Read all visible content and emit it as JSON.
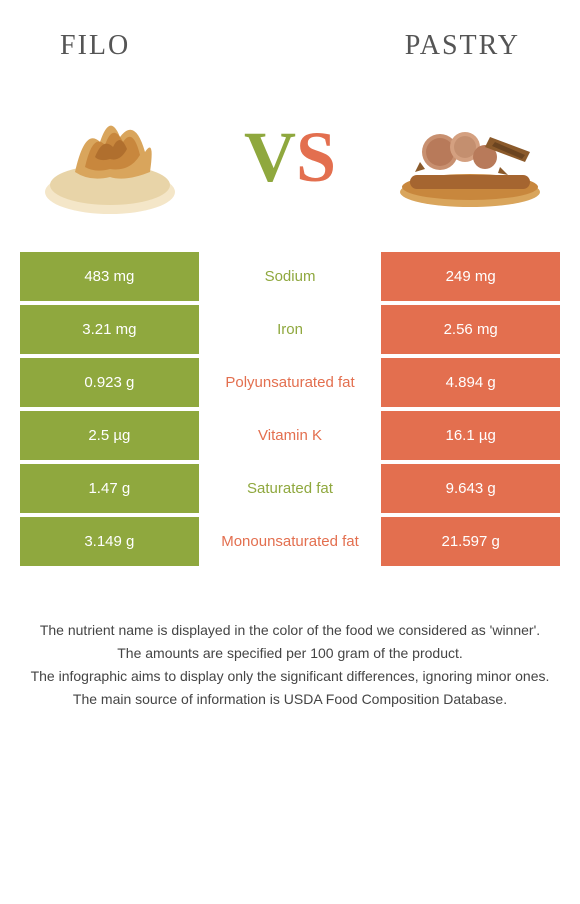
{
  "header": {
    "left_title": "Filo",
    "right_title": "Pastry"
  },
  "vs": {
    "v": "V",
    "s": "S"
  },
  "colors": {
    "green": "#8fa83e",
    "orange": "#e36f4f"
  },
  "rows": [
    {
      "left": "483 mg",
      "label": "Sodium",
      "right": "249 mg",
      "winner": "green"
    },
    {
      "left": "3.21 mg",
      "label": "Iron",
      "right": "2.56 mg",
      "winner": "green"
    },
    {
      "left": "0.923 g",
      "label": "Polyunsaturated fat",
      "right": "4.894 g",
      "winner": "orange"
    },
    {
      "left": "2.5 µg",
      "label": "Vitamin K",
      "right": "16.1 µg",
      "winner": "orange"
    },
    {
      "left": "1.47 g",
      "label": "Saturated fat",
      "right": "9.643 g",
      "winner": "green"
    },
    {
      "left": "3.149 g",
      "label": "Monounsaturated fat",
      "right": "21.597 g",
      "winner": "orange"
    }
  ],
  "footer": {
    "line1": "The nutrient name is displayed in the color of the food we considered as 'winner'.",
    "line2": "The amounts are specified per 100 gram of the product.",
    "line3": "The infographic aims to display only the significant differences, ignoring minor ones.",
    "line4": "The main source of information is USDA Food Composition Database."
  }
}
